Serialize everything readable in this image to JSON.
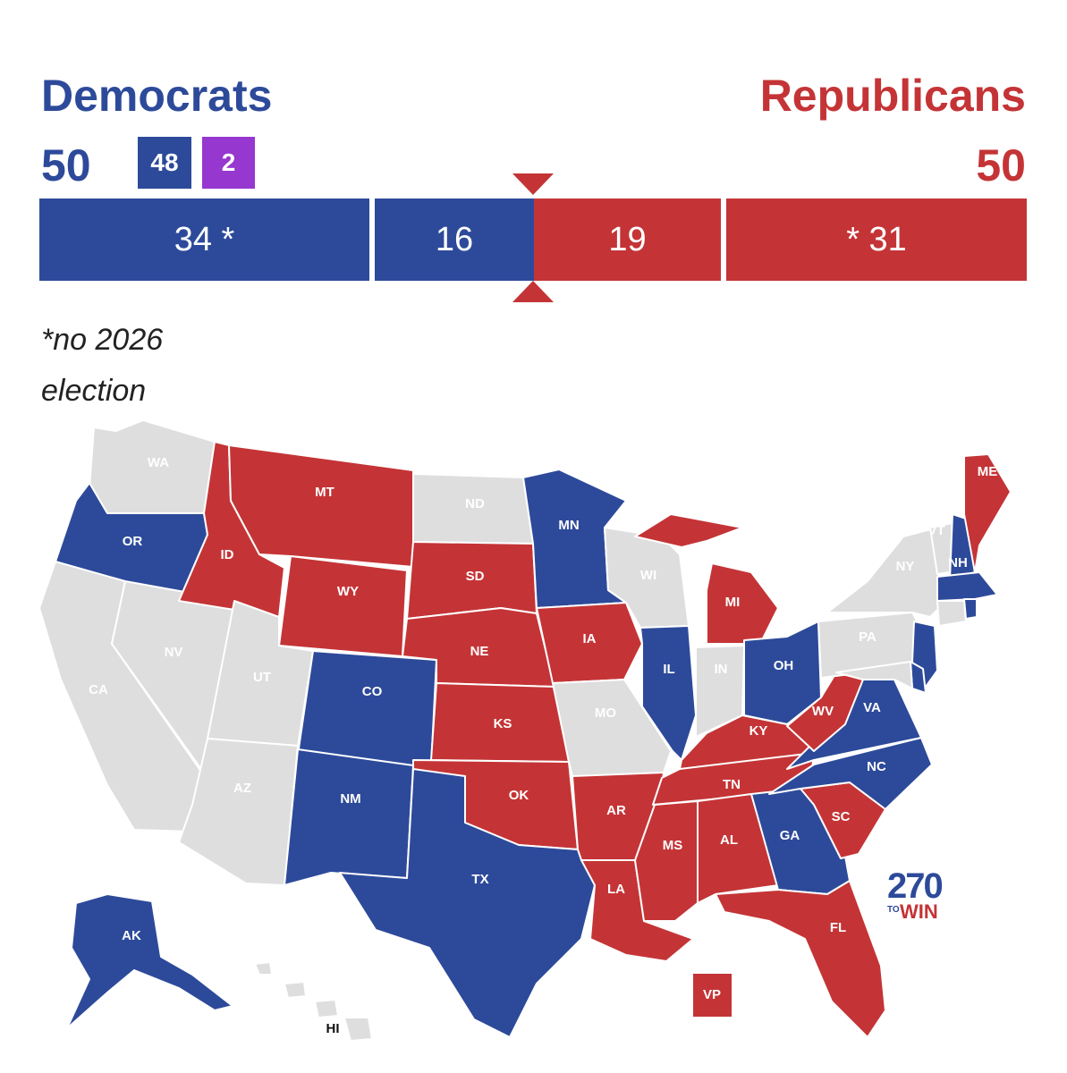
{
  "header": {
    "dem_title": "Democrats",
    "rep_title": "Republicans",
    "dem_total": "50",
    "rep_total": "50",
    "dem_badge": "48",
    "ind_badge": "2"
  },
  "bar": {
    "dem_not_up": "34 *",
    "dem_up": "16",
    "rep_up": "19",
    "rep_not_up": "* 31"
  },
  "footnote": {
    "line1": "*no 2026",
    "line2": "election"
  },
  "colors": {
    "dem": "#2d4a9a",
    "rep": "#c43436",
    "ind": "#9637d0",
    "no_election": "#dedede"
  },
  "states": [
    {
      "abbr": "WA",
      "party": "none"
    },
    {
      "abbr": "OR",
      "party": "dem"
    },
    {
      "abbr": "CA",
      "party": "none"
    },
    {
      "abbr": "NV",
      "party": "none"
    },
    {
      "abbr": "ID",
      "party": "rep"
    },
    {
      "abbr": "MT",
      "party": "rep"
    },
    {
      "abbr": "WY",
      "party": "rep"
    },
    {
      "abbr": "UT",
      "party": "none"
    },
    {
      "abbr": "AZ",
      "party": "none"
    },
    {
      "abbr": "CO",
      "party": "dem"
    },
    {
      "abbr": "NM",
      "party": "dem"
    },
    {
      "abbr": "ND",
      "party": "none"
    },
    {
      "abbr": "SD",
      "party": "rep"
    },
    {
      "abbr": "NE",
      "party": "rep"
    },
    {
      "abbr": "KS",
      "party": "rep"
    },
    {
      "abbr": "OK",
      "party": "rep"
    },
    {
      "abbr": "TX",
      "party": "dem"
    },
    {
      "abbr": "MN",
      "party": "dem"
    },
    {
      "abbr": "IA",
      "party": "rep"
    },
    {
      "abbr": "MO",
      "party": "none"
    },
    {
      "abbr": "AR",
      "party": "rep"
    },
    {
      "abbr": "LA",
      "party": "rep"
    },
    {
      "abbr": "WI",
      "party": "none"
    },
    {
      "abbr": "IL",
      "party": "dem"
    },
    {
      "abbr": "MI",
      "party": "rep"
    },
    {
      "abbr": "IN",
      "party": "none"
    },
    {
      "abbr": "OH",
      "party": "dem"
    },
    {
      "abbr": "KY",
      "party": "rep"
    },
    {
      "abbr": "TN",
      "party": "rep"
    },
    {
      "abbr": "MS",
      "party": "rep"
    },
    {
      "abbr": "AL",
      "party": "rep"
    },
    {
      "abbr": "GA",
      "party": "dem"
    },
    {
      "abbr": "FL",
      "party": "rep"
    },
    {
      "abbr": "SC",
      "party": "rep"
    },
    {
      "abbr": "NC",
      "party": "dem"
    },
    {
      "abbr": "VA",
      "party": "dem"
    },
    {
      "abbr": "WV",
      "party": "rep"
    },
    {
      "abbr": "PA",
      "party": "none"
    },
    {
      "abbr": "NY",
      "party": "none"
    },
    {
      "abbr": "VT",
      "party": "none"
    },
    {
      "abbr": "NH",
      "party": "dem"
    },
    {
      "abbr": "ME",
      "party": "rep"
    },
    {
      "abbr": "MA",
      "party": "dem"
    },
    {
      "abbr": "RI",
      "party": "dem"
    },
    {
      "abbr": "CT",
      "party": "none"
    },
    {
      "abbr": "NJ",
      "party": "dem"
    },
    {
      "abbr": "DE",
      "party": "dem"
    },
    {
      "abbr": "MD",
      "party": "none"
    },
    {
      "abbr": "AK",
      "party": "dem"
    },
    {
      "abbr": "HI",
      "party": "none"
    },
    {
      "abbr": "VP",
      "party": "rep"
    }
  ],
  "logo": {
    "number": "270",
    "to": "TO",
    "win": "WIN"
  }
}
